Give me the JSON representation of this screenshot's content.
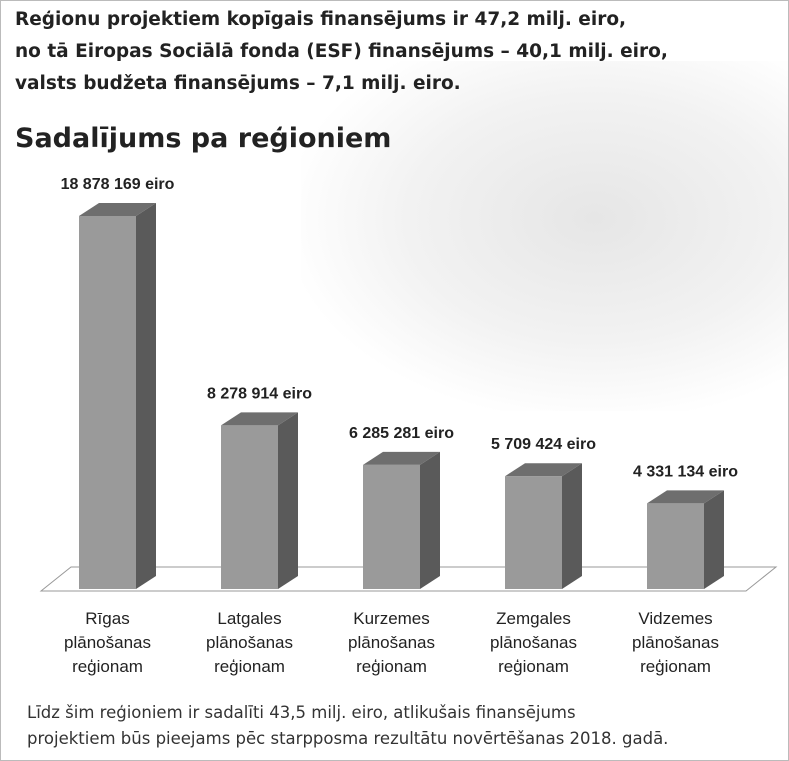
{
  "chart_data": {
    "type": "bar3d",
    "headline": [
      "Reģionu projektiem kopīgais finansējums ir 47,2 milj. eiro,",
      "no tā  Eiropas Sociālā fonda (ESF) finansējums – 40,1 milj. eiro,",
      "valsts budžeta finansējums – 7,1 milj. eiro."
    ],
    "title": "Sadalījums pa reģioniem",
    "categories": [
      "Rīgas plānošanas reģionam",
      "Latgales plānošanas reģionam",
      "Kurzemes plānošanas reģionam",
      "Zemgales plānošanas reģionam",
      "Vidzemes plānošanas reģionam"
    ],
    "values": [
      18878169,
      8278914,
      6285281,
      5709424,
      4331134
    ],
    "value_labels": [
      "18 878 169 eiro",
      "8 278 914 eiro",
      "6 285 281 eiro",
      "5 709 424 eiro",
      "4 331 134 eiro"
    ],
    "color": "#9a9a9a",
    "footnote": [
      "Līdz šim reģioniem ir sadalīti 43,5 milj. eiro, atlikušais finansējums",
      "projektiem būs pieejams pēc starpposma rezultātu novērtēšanas 2018. gadā."
    ]
  }
}
